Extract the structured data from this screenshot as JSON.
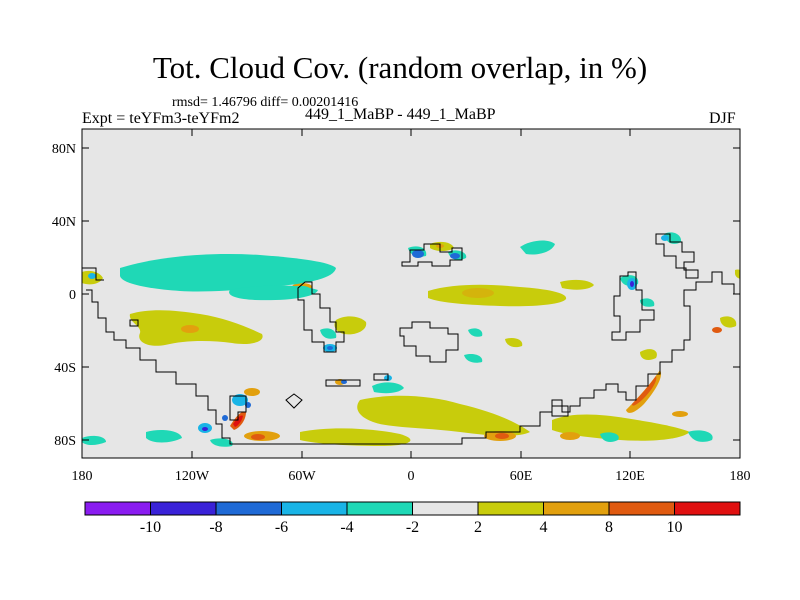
{
  "title": "Tot. Cloud Cov. (random overlap, in %)",
  "stats": "rmsd= 1.46796 diff= 0.00201416",
  "expt_label": "Expt = teYFm3-teYFm2",
  "case_label": "449_1_MaBP - 449_1_MaBP",
  "season": "DJF",
  "lat_ticks": [
    "80N",
    "40N",
    "0",
    "40S",
    "80S"
  ],
  "lon_ticks": [
    "180",
    "120W",
    "60W",
    "0",
    "60E",
    "120E",
    "180"
  ],
  "colorbar": {
    "labels": [
      "-10",
      "-8",
      "-6",
      "-4",
      "-2",
      "2",
      "4",
      "8",
      "10"
    ],
    "colors": [
      "#8a1cf0",
      "#3a22d8",
      "#1f6ad6",
      "#19b4e6",
      "#1fd8b6",
      "#e6e6e6",
      "#c8cc0c",
      "#e2a00e",
      "#e05a10",
      "#e01010"
    ]
  }
}
